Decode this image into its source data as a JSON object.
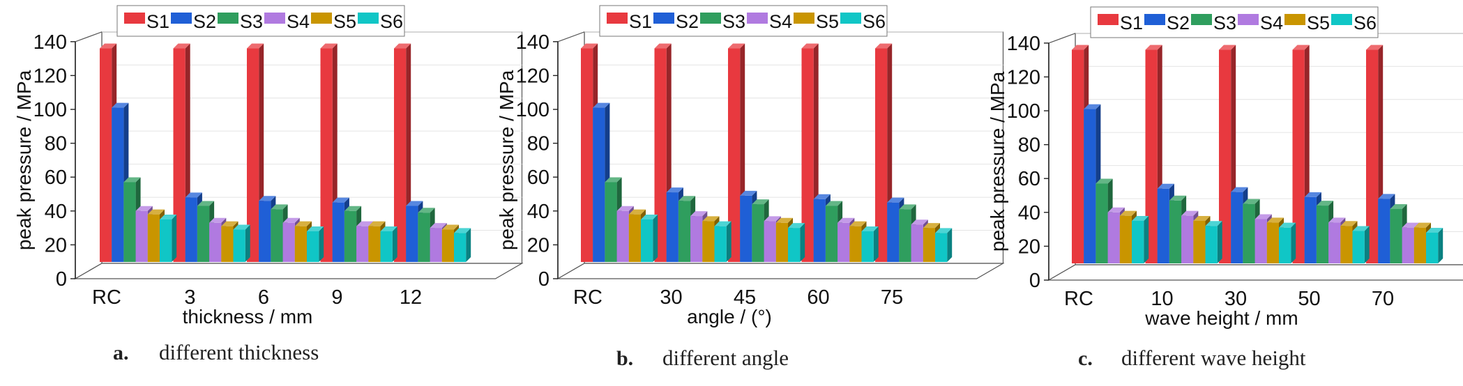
{
  "series_colors": {
    "S1": "#e8393f",
    "S2": "#1f5fd6",
    "S3": "#2f9e5e",
    "S4": "#b07ae0",
    "S5": "#c99500",
    "S6": "#10c6c6"
  },
  "chart_data": [
    {
      "type": "bar",
      "subtitle_letter": "a.",
      "subtitle": "different thickness",
      "xlabel": "thickness / mm",
      "ylabel": "peak pressure / MPa",
      "ylim": [
        0,
        140
      ],
      "yticks": [
        "0",
        "20",
        "40",
        "60",
        "80",
        "100",
        "120",
        "140"
      ],
      "categories": [
        "RC",
        "3",
        "6",
        "9",
        "12"
      ],
      "legend": [
        "S1",
        "S2",
        "S3",
        "S4",
        "S5",
        "S6"
      ],
      "legend_position": "top",
      "grid": true,
      "series": [
        {
          "name": "S1",
          "values": [
            136,
            136,
            136,
            136,
            136
          ]
        },
        {
          "name": "S2",
          "values": [
            101,
            48,
            46,
            45,
            43
          ]
        },
        {
          "name": "S3",
          "values": [
            57,
            43,
            41,
            40,
            39
          ]
        },
        {
          "name": "S4",
          "values": [
            40,
            33,
            33,
            31,
            30
          ]
        },
        {
          "name": "S5",
          "values": [
            38,
            31,
            31,
            31,
            29
          ]
        },
        {
          "name": "S6",
          "values": [
            35,
            29,
            28,
            28,
            27
          ]
        }
      ]
    },
    {
      "type": "bar",
      "subtitle_letter": "b.",
      "subtitle": "different angle",
      "xlabel": "angle / (°)",
      "ylabel": "peak pressure / MPa",
      "ylim": [
        0,
        140
      ],
      "yticks": [
        "0",
        "20",
        "40",
        "60",
        "80",
        "100",
        "120",
        "140"
      ],
      "categories": [
        "RC",
        "30",
        "45",
        "60",
        "75"
      ],
      "legend": [
        "S1",
        "S2",
        "S3",
        "S4",
        "S5",
        "S6"
      ],
      "legend_position": "top",
      "grid": true,
      "series": [
        {
          "name": "S1",
          "values": [
            136,
            136,
            136,
            136,
            136
          ]
        },
        {
          "name": "S2",
          "values": [
            101,
            51,
            49,
            47,
            45
          ]
        },
        {
          "name": "S3",
          "values": [
            57,
            46,
            44,
            43,
            41
          ]
        },
        {
          "name": "S4",
          "values": [
            40,
            37,
            34,
            33,
            32
          ]
        },
        {
          "name": "S5",
          "values": [
            38,
            34,
            33,
            31,
            30
          ]
        },
        {
          "name": "S6",
          "values": [
            35,
            31,
            30,
            28,
            27
          ]
        }
      ]
    },
    {
      "type": "bar",
      "subtitle_letter": "c.",
      "subtitle": "different wave height",
      "xlabel": "wave height / mm",
      "ylabel": "peak pressure / MPa",
      "ylim": [
        0,
        140
      ],
      "yticks": [
        "0",
        "20",
        "40",
        "60",
        "80",
        "100",
        "120",
        "140"
      ],
      "categories": [
        "RC",
        "10",
        "30",
        "50",
        "70"
      ],
      "legend": [
        "S1",
        "S2",
        "S3",
        "S4",
        "S5",
        "S6"
      ],
      "legend_position": "top",
      "grid": true,
      "series": [
        {
          "name": "S1",
          "values": [
            136,
            136,
            136,
            136,
            136
          ]
        },
        {
          "name": "S2",
          "values": [
            101,
            54,
            52,
            49,
            48
          ]
        },
        {
          "name": "S3",
          "values": [
            57,
            47,
            45,
            44,
            42
          ]
        },
        {
          "name": "S4",
          "values": [
            40,
            38,
            36,
            34,
            31
          ]
        },
        {
          "name": "S5",
          "values": [
            38,
            35,
            34,
            32,
            31
          ]
        },
        {
          "name": "S6",
          "values": [
            35,
            32,
            31,
            29,
            28
          ]
        }
      ]
    }
  ]
}
